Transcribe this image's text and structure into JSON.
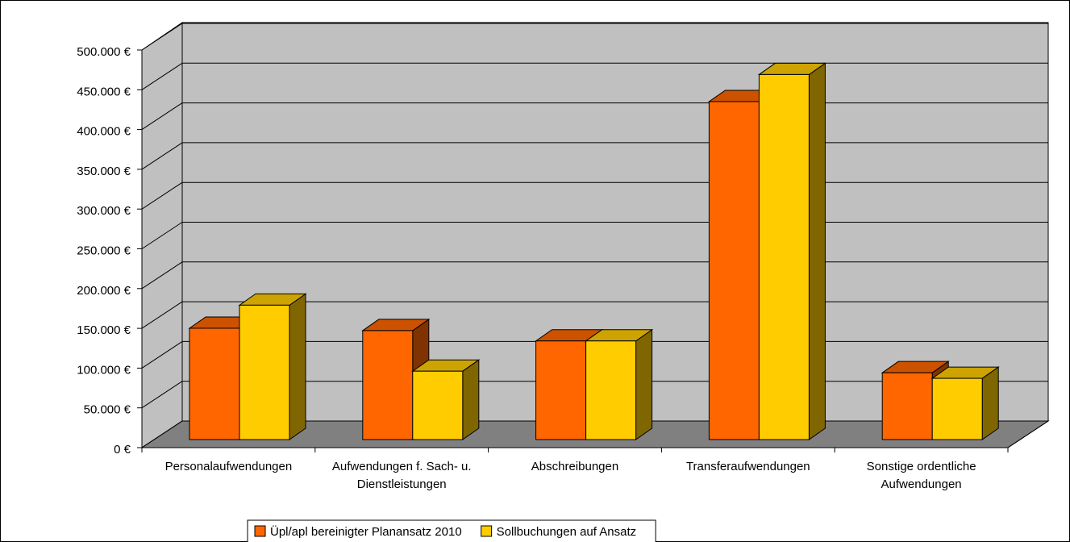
{
  "chart_data": {
    "type": "bar3d",
    "categories": [
      "Personalaufwendungen",
      "Aufwendungen f. Sach- u. Dienstleistungen",
      "Abschreibungen",
      "Transferaufwendungen",
      "Sonstige ordentliche Aufwendungen"
    ],
    "series": [
      {
        "name": "Üpl/apl bereinigter Planansatz 2010",
        "color": "#FF6600",
        "values": [
          140000,
          137000,
          124000,
          425000,
          84000
        ]
      },
      {
        "name": "Sollbuchungen auf Ansatz",
        "color": "#FFCC00",
        "values": [
          169000,
          86000,
          124000,
          459000,
          77000
        ]
      }
    ],
    "ylim": [
      0,
      500000
    ],
    "yticks": [
      {
        "value": 0,
        "label": "0 €"
      },
      {
        "value": 50000,
        "label": "50.000 €"
      },
      {
        "value": 100000,
        "label": "100.000 €"
      },
      {
        "value": 150000,
        "label": "150.000 €"
      },
      {
        "value": 200000,
        "label": "200.000 €"
      },
      {
        "value": 250000,
        "label": "250.000 €"
      },
      {
        "value": 300000,
        "label": "300.000 €"
      },
      {
        "value": 350000,
        "label": "350.000 €"
      },
      {
        "value": 400000,
        "label": "400.000 €"
      },
      {
        "value": 450000,
        "label": "450.000 €"
      },
      {
        "value": 500000,
        "label": "500.000 €"
      }
    ],
    "grid": true,
    "legend": "bottom"
  }
}
